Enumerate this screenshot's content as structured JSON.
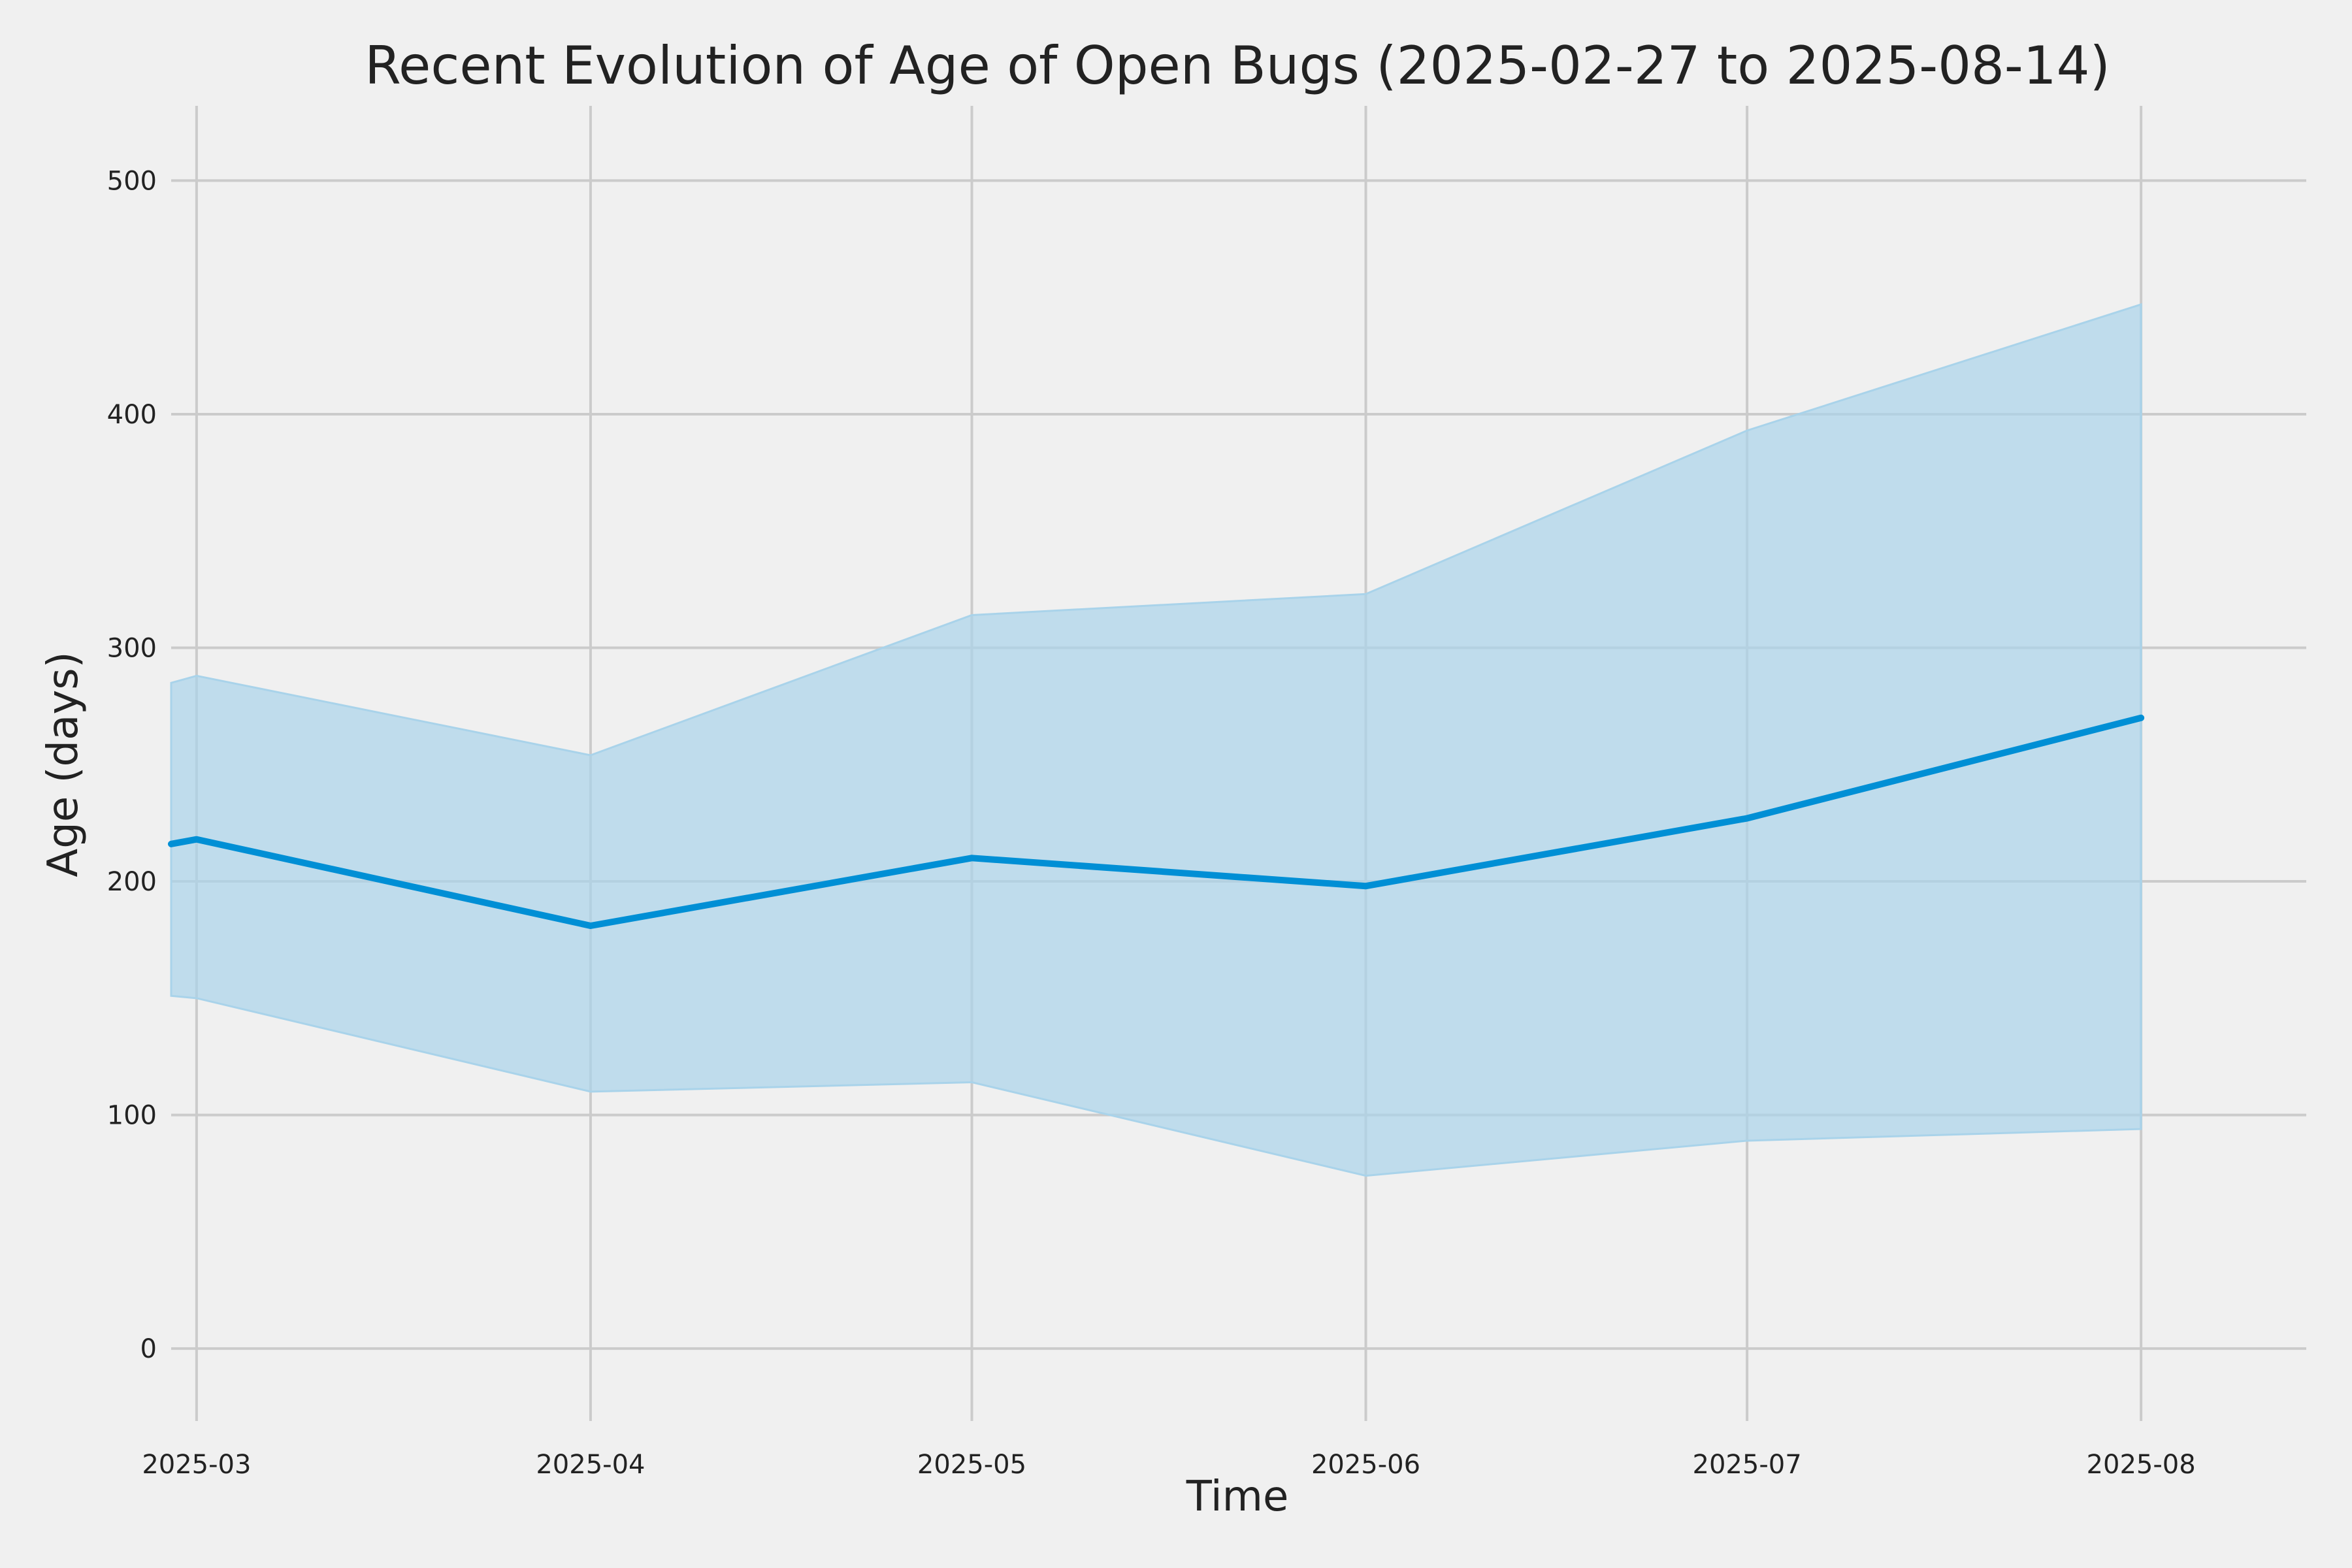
{
  "chart_data": {
    "type": "area",
    "title": "Recent Evolution of Age of Open Bugs (2025-02-27 to 2025-08-14)",
    "xlabel": "Time",
    "ylabel": "Age (days)",
    "x_start": "2025-02-27",
    "x_end": "2025-08-14",
    "x": [
      "2025-02-27",
      "2025-03-01",
      "2025-04-01",
      "2025-05-01",
      "2025-06-01",
      "2025-07-01",
      "2025-08-01"
    ],
    "series": [
      {
        "values": [
          216,
          218,
          181,
          210,
          198,
          227,
          270
        ],
        "band_lower": [
          151,
          150,
          110,
          114,
          74,
          89,
          94
        ],
        "band_upper": [
          285,
          288,
          254,
          314,
          323,
          393,
          447
        ]
      }
    ],
    "x_ticks": [
      "2025-03",
      "2025-04",
      "2025-05",
      "2025-06",
      "2025-07",
      "2025-08"
    ],
    "y_ticks": [
      0,
      100,
      200,
      300,
      400,
      500
    ],
    "ylim": [
      -31,
      532
    ],
    "xlim": [
      "2025-02-27",
      "2025-08-14"
    ],
    "grid": true,
    "colors": {
      "line": "#008fd5",
      "band": "#a9d3ea",
      "grid": "#cbcbcb",
      "background": "#f0f0f0",
      "text": "#222222"
    }
  }
}
